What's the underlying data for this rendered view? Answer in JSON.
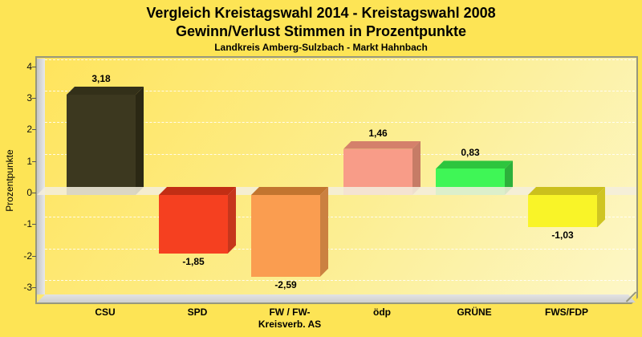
{
  "page": {
    "background": "#FDE455"
  },
  "header": {
    "title_line1": "Vergleich Kreistagswahl 2014 - Kreistagswahl 2008",
    "title_line2": "Gewinn/Verlust Stimmen in Prozentpunkte",
    "subtitle": "Landkreis Amberg-Sulzbach - Markt Hahnbach"
  },
  "chart_data": {
    "type": "bar",
    "style": "3d",
    "title": "Vergleich Kreistagswahl 2014 - Kreistagswahl 2008",
    "subtitle": "Gewinn/Verlust Stimmen in Prozentpunkte",
    "caption": "Landkreis Amberg-Sulzbach - Markt Hahnbach",
    "xlabel": "",
    "ylabel": "Prozentpunkte",
    "ylim": [
      -3.5,
      4
    ],
    "yticks": [
      4,
      3,
      2,
      1,
      0,
      -1,
      -2,
      -3
    ],
    "ytick_labels": [
      "4",
      "3",
      "2",
      "1",
      "0",
      "-1",
      "-2",
      "-3"
    ],
    "grid": true,
    "legend": false,
    "categories": [
      "CSU",
      "SPD",
      "FW / FW-\nKreisverb. AS",
      "ödp",
      "GRÜNE",
      "FWS/FDP"
    ],
    "values": [
      3.18,
      -1.85,
      -2.59,
      1.46,
      0.83,
      -1.03
    ],
    "value_labels": [
      "3,18",
      "-1,85",
      "-2,59",
      "1,46",
      "0,83",
      "-1,03"
    ],
    "bar_colors": [
      {
        "front": "#3C381F",
        "top": "#333019",
        "side": "#2B2814"
      },
      {
        "front": "#F54020",
        "top": "#C22E14",
        "side": "#C6361C"
      },
      {
        "front": "#FA9D50",
        "top": "#C2752F",
        "side": "#CB8140"
      },
      {
        "front": "#F89C88",
        "top": "#D4806B",
        "side": "#C67C66"
      },
      {
        "front": "#3FF656",
        "top": "#2EC53E",
        "side": "#2CB13B"
      },
      {
        "front": "#F9F428",
        "top": "#CBC01D",
        "side": "#CFC522"
      }
    ]
  }
}
